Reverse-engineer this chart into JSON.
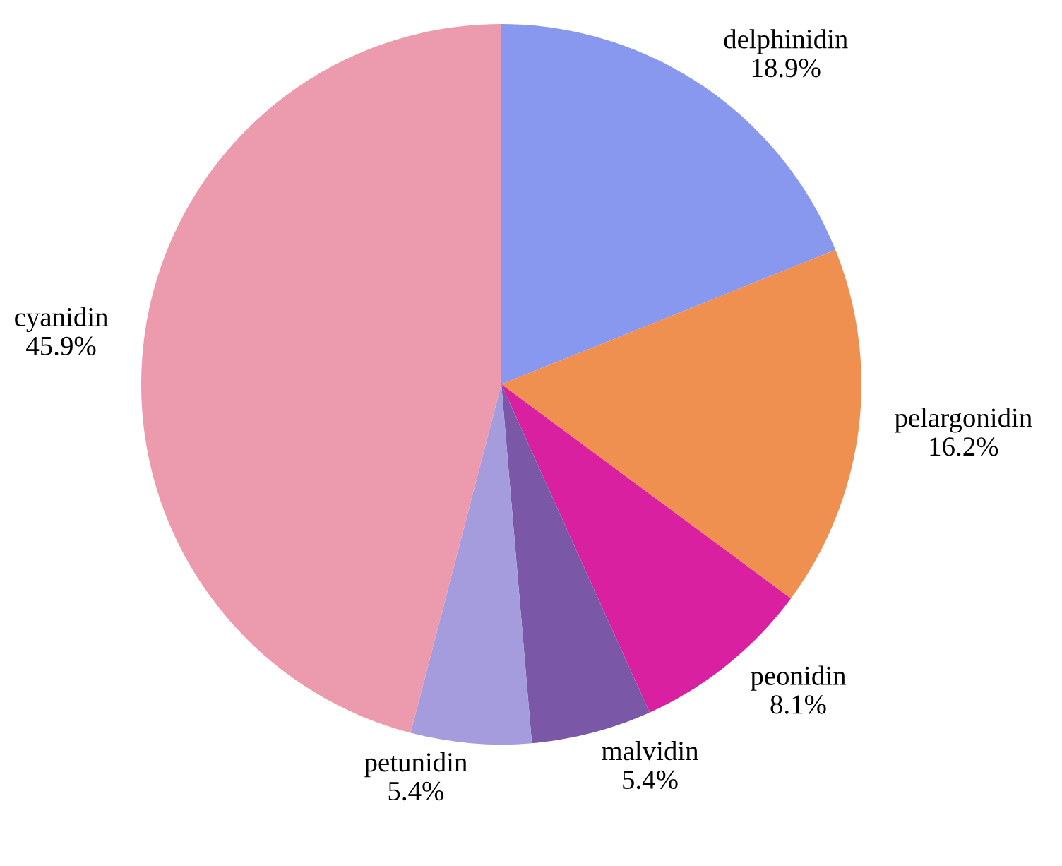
{
  "chart_data": {
    "type": "pie",
    "categories": [
      "delphinidin",
      "pelargonidin",
      "peonidin",
      "malvidin",
      "petunidin",
      "cyanidin"
    ],
    "values": [
      18.9,
      16.2,
      8.1,
      5.4,
      5.4,
      45.9
    ],
    "value_labels": [
      "18.9%",
      "16.2%",
      "8.1%",
      "5.4%",
      "5.4%",
      "45.9%"
    ],
    "colors": [
      "#8898ee",
      "#f09050",
      "#d820a0",
      "#7b57a8",
      "#a49cdc",
      "#ec9aae"
    ],
    "legend": false
  }
}
